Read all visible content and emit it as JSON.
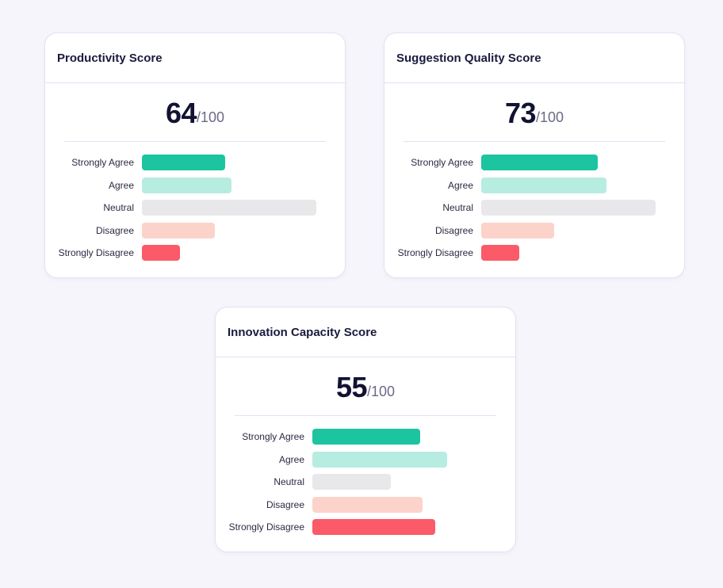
{
  "colors": {
    "strongly_agree": "#1cc4a0",
    "agree": "#b7ece1",
    "neutral": "#e8e7ea",
    "disagree": "#fbd3cb",
    "strongly_disagree": "#fb5a68"
  },
  "chart_data": [
    {
      "type": "bar",
      "orientation": "horizontal",
      "title": "Productivity Score",
      "score": "64",
      "score_max": "/100",
      "categories": [
        "Strongly Agree",
        "Agree",
        "Neutral",
        "Disagree",
        "Strongly Disagree"
      ],
      "values": [
        105,
        113,
        220,
        92,
        48
      ]
    },
    {
      "type": "bar",
      "orientation": "horizontal",
      "title": "Suggestion Quality Score",
      "score": "73",
      "score_max": "/100",
      "categories": [
        "Strongly Agree",
        "Agree",
        "Neutral",
        "Disagree",
        "Strongly Disagree"
      ],
      "values": [
        147,
        158,
        220,
        92,
        48
      ]
    },
    {
      "type": "bar",
      "orientation": "horizontal",
      "title": "Innovation Capacity Score",
      "score": "55",
      "score_max": "/100",
      "categories": [
        "Strongly Agree",
        "Agree",
        "Neutral",
        "Disagree",
        "Strongly Disagree"
      ],
      "values": [
        136,
        170,
        99,
        139,
        155
      ]
    }
  ]
}
